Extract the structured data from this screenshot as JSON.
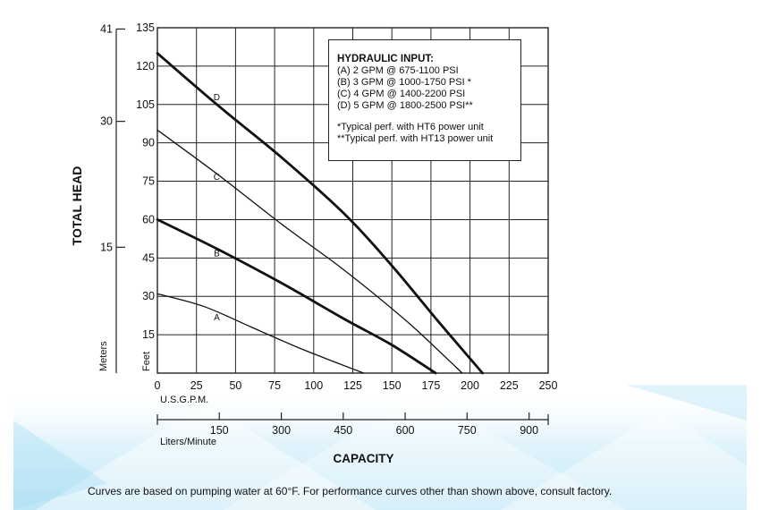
{
  "chart_data": {
    "type": "line",
    "title": "",
    "ylabel": "TOTAL HEAD",
    "y_unit_primary": "Feet",
    "y_unit_secondary": "Meters",
    "xlabel": "CAPACITY",
    "x_unit_primary": "U.S.G.P.M.",
    "x_unit_secondary": "Liters/Minute",
    "xlim": [
      0,
      250
    ],
    "ylim": [
      0,
      135
    ],
    "x_ticks": [
      "0",
      "25",
      "50",
      "75",
      "100",
      "125",
      "150",
      "175",
      "200",
      "225",
      "250"
    ],
    "y_ticks": [
      "15",
      "30",
      "45",
      "60",
      "75",
      "90",
      "105",
      "120",
      "135"
    ],
    "secondary_y_ticks": [
      {
        "label": "15",
        "feet": 49.2
      },
      {
        "label": "30",
        "feet": 98.4
      },
      {
        "label": "41",
        "feet": 134.5
      }
    ],
    "secondary_x_ticks": [
      {
        "label": "150",
        "gpm": 39.6
      },
      {
        "label": "300",
        "gpm": 79.3
      },
      {
        "label": "450",
        "gpm": 118.9
      },
      {
        "label": "600",
        "gpm": 158.5
      },
      {
        "label": "750",
        "gpm": 198.1
      },
      {
        "label": "900",
        "gpm": 237.8
      }
    ],
    "grid": true,
    "legend_placement": "top-right",
    "series": [
      {
        "name": "A",
        "label_at": [
          38,
          22
        ],
        "width": 1.3,
        "x": [
          0,
          30,
          60,
          90,
          115,
          132
        ],
        "y": [
          31,
          26,
          18,
          10,
          4,
          0
        ]
      },
      {
        "name": "B",
        "label_at": [
          38,
          47
        ],
        "width": 2.8,
        "x": [
          0,
          40,
          80,
          120,
          150,
          178
        ],
        "y": [
          60,
          48,
          35,
          21,
          11,
          0
        ]
      },
      {
        "name": "C",
        "label_at": [
          38,
          77
        ],
        "width": 1.3,
        "x": [
          0,
          40,
          80,
          120,
          160,
          195
        ],
        "y": [
          95,
          77,
          58,
          40,
          20,
          0
        ]
      },
      {
        "name": "D",
        "label_at": [
          38,
          108
        ],
        "width": 2.8,
        "x": [
          0,
          40,
          80,
          120,
          150,
          180,
          208
        ],
        "y": [
          125,
          104,
          84,
          62,
          42,
          20,
          0
        ]
      }
    ]
  },
  "legend": {
    "title": "HYDRAULIC INPUT:",
    "items": [
      "(A) 2 GPM @ 675-1100 PSI",
      "(B) 3 GPM @ 1000-1750 PSI *",
      "(C) 4 GPM @ 1400-2200  PSI",
      "(D) 5 GPM @ 1800-2500 PSI**"
    ],
    "notes": [
      "*Typical perf. with HT6 power unit",
      "**Typical perf. with HT13 power unit"
    ]
  },
  "footnote": "Curves are based on pumping water at 60°F. For performance curves other than shown above, consult factory.",
  "colors": {
    "grid": "#222222",
    "curve": "#111111",
    "bg_accent": "#bfe6f7"
  }
}
